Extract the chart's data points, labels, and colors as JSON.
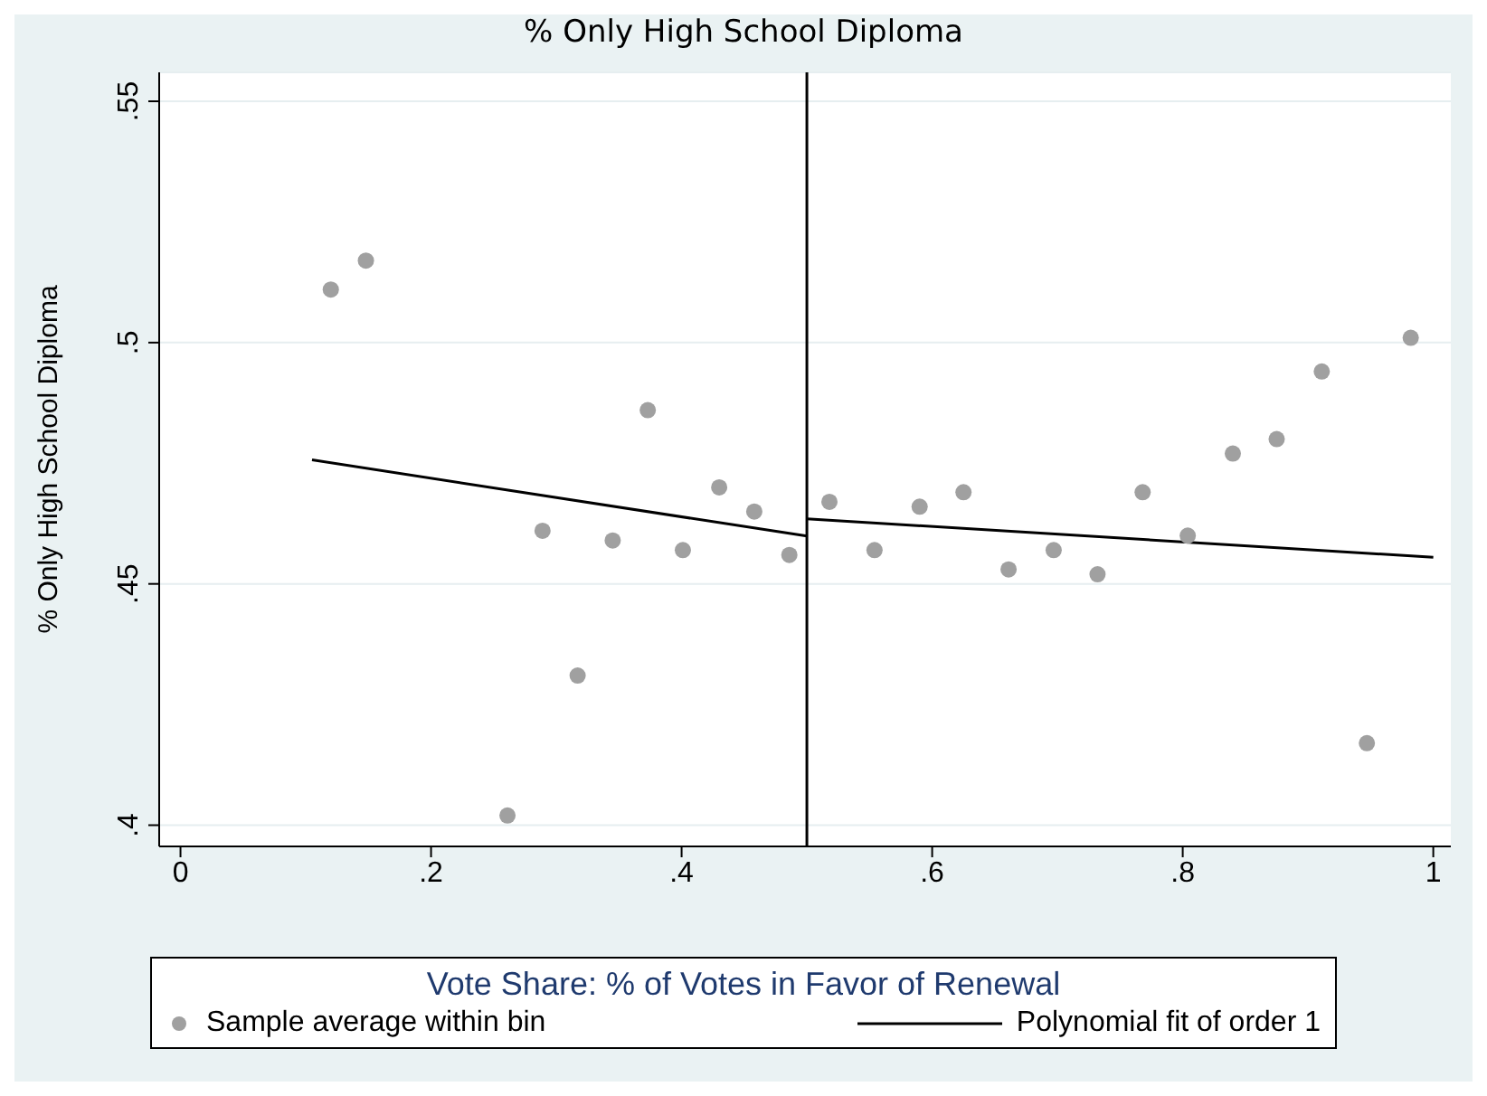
{
  "chart_data": {
    "type": "scatter",
    "title": "% Only High School Diploma",
    "ylabel": "% Only High School Diploma",
    "legend_title": "Vote Share: % of Votes in Favor of Renewal",
    "xlim": [
      -0.017,
      1.014
    ],
    "xticks": [
      0,
      {
        "value": 0.2,
        "label": ".2"
      },
      {
        "value": 0.4,
        "label": ".4"
      },
      {
        "value": 0.6,
        "label": ".6"
      },
      {
        "value": 0.8,
        "label": ".8"
      },
      1
    ],
    "ylim": [
      0.3956,
      0.556
    ],
    "yticks": [
      {
        "value": 0.4,
        "label": ".4"
      },
      {
        "value": 0.45,
        "label": ".45"
      },
      {
        "value": 0.5,
        "label": ".5"
      },
      {
        "value": 0.55,
        "label": ".55"
      }
    ],
    "grid": "y",
    "legend": "bottom",
    "ref_lines": [
      {
        "axis": "x",
        "value": 0.5,
        "color": "#000000"
      }
    ],
    "series": [
      {
        "name": "Sample average within bin",
        "color": "#a0a0a0",
        "marker": "circle",
        "x": [
          0.12,
          0.148,
          0.261,
          0.289,
          0.317,
          0.345,
          0.373,
          0.401,
          0.43,
          0.458,
          0.486,
          0.518,
          0.554,
          0.59,
          0.625,
          0.661,
          0.697,
          0.732,
          0.768,
          0.804,
          0.84,
          0.875,
          0.911,
          0.947,
          0.982
        ],
        "values": [
          0.511,
          0.517,
          0.402,
          0.461,
          0.431,
          0.459,
          0.486,
          0.457,
          0.47,
          0.465,
          0.456,
          0.467,
          0.457,
          0.466,
          0.469,
          0.453,
          0.457,
          0.452,
          0.469,
          0.46,
          0.477,
          0.48,
          0.494,
          0.417,
          0.501
        ]
      },
      {
        "name": "Polynomial fit of order 1",
        "type": "line",
        "color": "#000000",
        "x": [
          0.105,
          0.5
        ],
        "values": [
          0.4757,
          0.4599
        ]
      },
      {
        "type": "line",
        "color": "#000000",
        "x": [
          0.5,
          1.0
        ],
        "values": [
          0.4635,
          0.4555
        ]
      }
    ]
  }
}
